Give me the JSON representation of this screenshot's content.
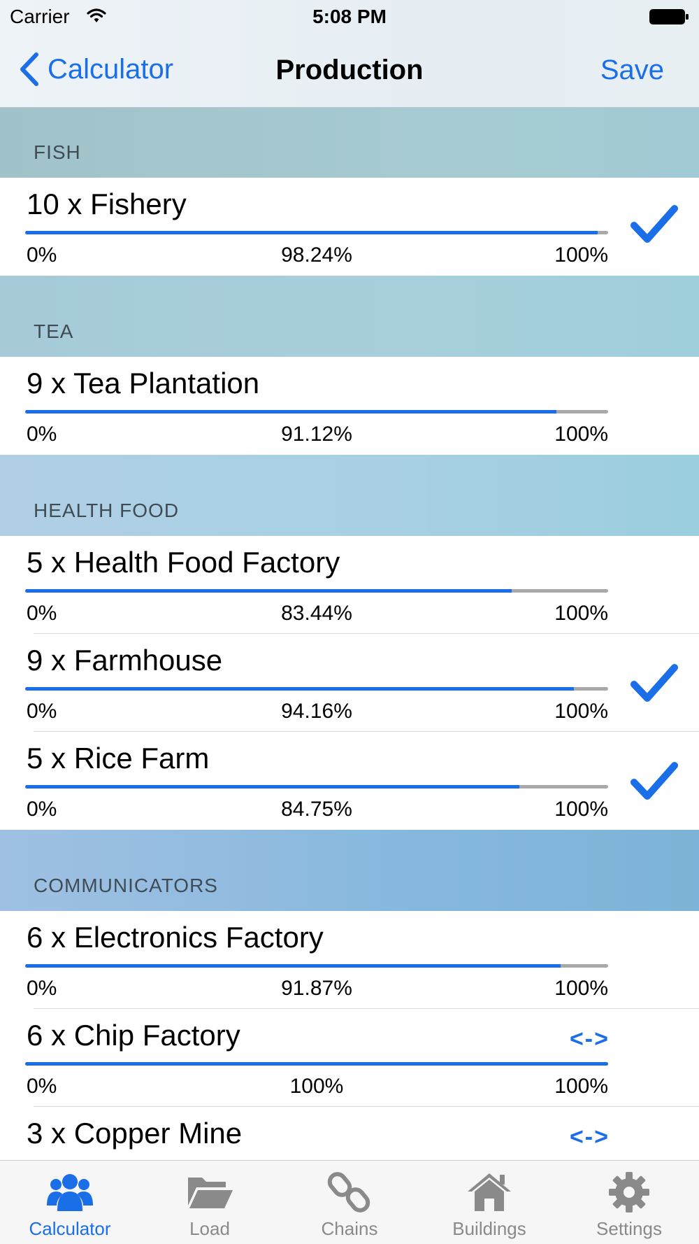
{
  "status": {
    "carrier": "Carrier",
    "time": "5:08 PM"
  },
  "nav": {
    "back_label": "Calculator",
    "title": "Production",
    "save_label": "Save"
  },
  "sections": [
    {
      "title": "FISH",
      "rows": [
        {
          "name": "10 x Fishery",
          "min": "0%",
          "value": "98.24%",
          "max": "100%",
          "fill": 98.24,
          "checked": true,
          "swap": null
        }
      ]
    },
    {
      "title": "TEA",
      "rows": [
        {
          "name": "9 x Tea Plantation",
          "min": "0%",
          "value": "91.12%",
          "max": "100%",
          "fill": 91.12,
          "checked": false,
          "swap": null
        }
      ]
    },
    {
      "title": "HEALTH FOOD",
      "rows": [
        {
          "name": "5 x Health Food Factory",
          "min": "0%",
          "value": "83.44%",
          "max": "100%",
          "fill": 83.44,
          "checked": false,
          "swap": null
        },
        {
          "name": "9 x Farmhouse",
          "min": "0%",
          "value": "94.16%",
          "max": "100%",
          "fill": 94.16,
          "checked": true,
          "swap": null
        },
        {
          "name": "5 x Rice Farm",
          "min": "0%",
          "value": "84.75%",
          "max": "100%",
          "fill": 84.75,
          "checked": true,
          "swap": null
        }
      ]
    },
    {
      "title": "COMMUNICATORS",
      "rows": [
        {
          "name": "6 x Electronics Factory",
          "min": "0%",
          "value": "91.87%",
          "max": "100%",
          "fill": 91.87,
          "checked": false,
          "swap": null
        },
        {
          "name": "6 x Chip Factory",
          "min": "0%",
          "value": "100%",
          "max": "100%",
          "fill": 100,
          "checked": false,
          "swap": "<->"
        },
        {
          "name": "3 x Copper Mine",
          "min": "",
          "value": "",
          "max": "",
          "fill": 100,
          "checked": false,
          "swap": "<->"
        }
      ]
    }
  ],
  "tabs": [
    {
      "label": "Calculator",
      "icon": "people-icon",
      "active": true
    },
    {
      "label": "Load",
      "icon": "folder-icon",
      "active": false
    },
    {
      "label": "Chains",
      "icon": "chain-icon",
      "active": false
    },
    {
      "label": "Buildings",
      "icon": "house-icon",
      "active": false
    },
    {
      "label": "Settings",
      "icon": "gear-icon",
      "active": false
    }
  ],
  "colors": {
    "accent": "#1a6fe8",
    "bar_track": "#a9a9a9"
  }
}
